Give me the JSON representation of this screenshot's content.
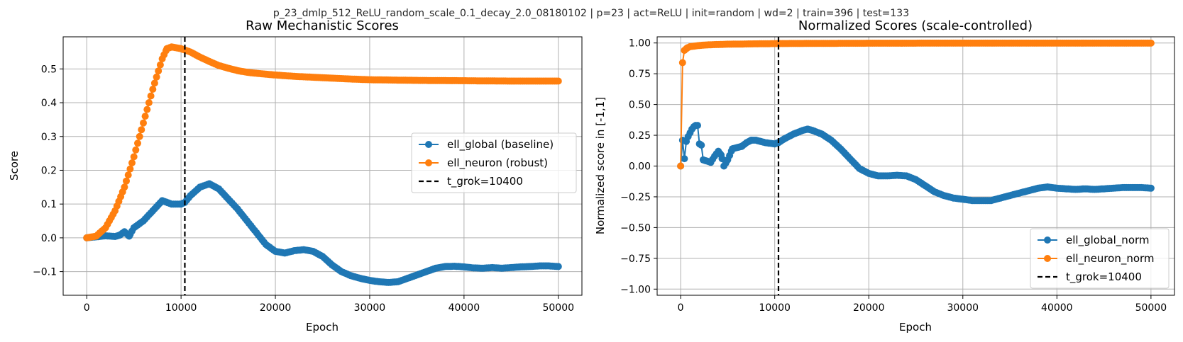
{
  "suptitle": "p_23_dmlp_512_ReLU_random_scale_0.1_decay_2.0_08180102 | p=23 | act=ReLU | init=random | wd=2 | train=396 | test=133",
  "colors": {
    "blue": "#1f77b4",
    "orange": "#ff7f0e",
    "vline": "#000000"
  },
  "chart_data": [
    {
      "type": "line",
      "title": "Raw Mechanistic Scores",
      "xlabel": "Epoch",
      "ylabel": "Score",
      "xlim": [
        -2500,
        52500
      ],
      "ylim": [
        -0.17,
        0.595
      ],
      "xticks": [
        0,
        10000,
        20000,
        30000,
        40000,
        50000
      ],
      "xtick_labels": [
        "0",
        "10000",
        "20000",
        "30000",
        "40000",
        "50000"
      ],
      "yticks": [
        -0.1,
        0.0,
        0.1,
        0.2,
        0.3,
        0.4,
        0.5
      ],
      "ytick_labels": [
        "−0.1",
        "0.0",
        "0.1",
        "0.2",
        "0.3",
        "0.4",
        "0.5"
      ],
      "grid": true,
      "legend_position": "center-right",
      "vline": {
        "x": 10400,
        "label": "t_grok=10400"
      },
      "series": [
        {
          "name": "ell_global (baseline)",
          "color": "#1f77b4",
          "marker": "circle",
          "points": [
            [
              0,
              0.0
            ],
            [
              1000,
              0.003
            ],
            [
              2000,
              0.006
            ],
            [
              3000,
              0.004
            ],
            [
              3500,
              0.008
            ],
            [
              4000,
              0.018
            ],
            [
              4500,
              0.005
            ],
            [
              5000,
              0.03
            ],
            [
              6000,
              0.05
            ],
            [
              7000,
              0.08
            ],
            [
              8000,
              0.11
            ],
            [
              9000,
              0.1
            ],
            [
              10000,
              0.1
            ],
            [
              10400,
              0.105
            ],
            [
              11000,
              0.125
            ],
            [
              12000,
              0.15
            ],
            [
              13000,
              0.16
            ],
            [
              14000,
              0.145
            ],
            [
              15000,
              0.115
            ],
            [
              16000,
              0.085
            ],
            [
              17000,
              0.05
            ],
            [
              18000,
              0.015
            ],
            [
              19000,
              -0.02
            ],
            [
              20000,
              -0.04
            ],
            [
              21000,
              -0.045
            ],
            [
              22000,
              -0.038
            ],
            [
              23000,
              -0.035
            ],
            [
              24000,
              -0.04
            ],
            [
              25000,
              -0.055
            ],
            [
              26000,
              -0.08
            ],
            [
              27000,
              -0.1
            ],
            [
              28000,
              -0.112
            ],
            [
              29000,
              -0.12
            ],
            [
              30000,
              -0.126
            ],
            [
              31000,
              -0.13
            ],
            [
              32000,
              -0.132
            ],
            [
              33000,
              -0.13
            ],
            [
              34000,
              -0.12
            ],
            [
              35000,
              -0.11
            ],
            [
              36000,
              -0.1
            ],
            [
              37000,
              -0.09
            ],
            [
              38000,
              -0.085
            ],
            [
              39000,
              -0.084
            ],
            [
              40000,
              -0.086
            ],
            [
              41000,
              -0.089
            ],
            [
              42000,
              -0.09
            ],
            [
              43000,
              -0.088
            ],
            [
              44000,
              -0.09
            ],
            [
              45000,
              -0.088
            ],
            [
              46000,
              -0.086
            ],
            [
              47000,
              -0.085
            ],
            [
              48000,
              -0.083
            ],
            [
              49000,
              -0.083
            ],
            [
              50000,
              -0.085
            ]
          ]
        },
        {
          "name": "ell_neuron (robust)",
          "color": "#ff7f0e",
          "marker": "circle",
          "points": [
            [
              0,
              0.0
            ],
            [
              1000,
              0.005
            ],
            [
              2000,
              0.03
            ],
            [
              3000,
              0.08
            ],
            [
              4000,
              0.15
            ],
            [
              5000,
              0.24
            ],
            [
              6000,
              0.34
            ],
            [
              7000,
              0.44
            ],
            [
              8000,
              0.53
            ],
            [
              8500,
              0.56
            ],
            [
              9000,
              0.565
            ],
            [
              10000,
              0.56
            ],
            [
              11000,
              0.55
            ],
            [
              12000,
              0.535
            ],
            [
              13000,
              0.522
            ],
            [
              14000,
              0.51
            ],
            [
              15000,
              0.502
            ],
            [
              16000,
              0.495
            ],
            [
              17000,
              0.49
            ],
            [
              18000,
              0.487
            ],
            [
              20000,
              0.482
            ],
            [
              22000,
              0.478
            ],
            [
              25000,
              0.474
            ],
            [
              28000,
              0.47
            ],
            [
              30000,
              0.468
            ],
            [
              35000,
              0.466
            ],
            [
              40000,
              0.465
            ],
            [
              45000,
              0.464
            ],
            [
              50000,
              0.464
            ]
          ]
        }
      ]
    },
    {
      "type": "line",
      "title": "Normalized Scores (scale-controlled)",
      "xlabel": "Epoch",
      "ylabel": "Normalized score in [-1,1]",
      "xlim": [
        -2500,
        52500
      ],
      "ylim": [
        -1.05,
        1.05
      ],
      "xticks": [
        0,
        10000,
        20000,
        30000,
        40000,
        50000
      ],
      "xtick_labels": [
        "0",
        "10000",
        "20000",
        "30000",
        "40000",
        "50000"
      ],
      "yticks": [
        -1.0,
        -0.75,
        -0.5,
        -0.25,
        0.0,
        0.25,
        0.5,
        0.75,
        1.0
      ],
      "ytick_labels": [
        "−1.00",
        "−0.75",
        "−0.50",
        "−0.25",
        "0.00",
        "0.25",
        "0.50",
        "0.75",
        "1.00"
      ],
      "grid": true,
      "legend_position": "lower-right",
      "vline": {
        "x": 10400,
        "label": "t_grok=10400"
      },
      "series": [
        {
          "name": "ell_global_norm",
          "color": "#1f77b4",
          "marker": "circle",
          "points": [
            [
              0,
              0.0
            ],
            [
              200,
              0.21
            ],
            [
              400,
              0.06
            ],
            [
              600,
              0.2
            ],
            [
              800,
              0.24
            ],
            [
              1000,
              0.27
            ],
            [
              1200,
              0.3
            ],
            [
              1400,
              0.32
            ],
            [
              1600,
              0.33
            ],
            [
              1800,
              0.33
            ],
            [
              2000,
              0.18
            ],
            [
              2200,
              0.17
            ],
            [
              2400,
              0.05
            ],
            [
              2800,
              0.04
            ],
            [
              3200,
              0.03
            ],
            [
              3600,
              0.08
            ],
            [
              4000,
              0.12
            ],
            [
              4300,
              0.09
            ],
            [
              4600,
              0.0
            ],
            [
              5000,
              0.05
            ],
            [
              5500,
              0.14
            ],
            [
              6000,
              0.15
            ],
            [
              6500,
              0.16
            ],
            [
              7000,
              0.19
            ],
            [
              7500,
              0.21
            ],
            [
              8000,
              0.21
            ],
            [
              8500,
              0.2
            ],
            [
              9000,
              0.19
            ],
            [
              10000,
              0.18
            ],
            [
              10400,
              0.19
            ],
            [
              11000,
              0.22
            ],
            [
              12000,
              0.26
            ],
            [
              13000,
              0.29
            ],
            [
              13500,
              0.3
            ],
            [
              14000,
              0.29
            ],
            [
              15000,
              0.26
            ],
            [
              16000,
              0.21
            ],
            [
              17000,
              0.14
            ],
            [
              18000,
              0.06
            ],
            [
              19000,
              -0.02
            ],
            [
              20000,
              -0.06
            ],
            [
              21000,
              -0.08
            ],
            [
              22000,
              -0.08
            ],
            [
              23000,
              -0.075
            ],
            [
              24000,
              -0.08
            ],
            [
              25000,
              -0.11
            ],
            [
              26000,
              -0.16
            ],
            [
              27000,
              -0.21
            ],
            [
              28000,
              -0.24
            ],
            [
              29000,
              -0.26
            ],
            [
              30000,
              -0.27
            ],
            [
              31000,
              -0.28
            ],
            [
              32000,
              -0.28
            ],
            [
              33000,
              -0.28
            ],
            [
              34000,
              -0.26
            ],
            [
              35000,
              -0.24
            ],
            [
              36000,
              -0.22
            ],
            [
              37000,
              -0.2
            ],
            [
              38000,
              -0.18
            ],
            [
              39000,
              -0.17
            ],
            [
              40000,
              -0.18
            ],
            [
              41000,
              -0.185
            ],
            [
              42000,
              -0.19
            ],
            [
              43000,
              -0.185
            ],
            [
              44000,
              -0.19
            ],
            [
              45000,
              -0.185
            ],
            [
              46000,
              -0.18
            ],
            [
              47000,
              -0.175
            ],
            [
              48000,
              -0.175
            ],
            [
              49000,
              -0.175
            ],
            [
              50000,
              -0.18
            ]
          ]
        },
        {
          "name": "ell_neuron_norm",
          "color": "#ff7f0e",
          "marker": "circle",
          "points": [
            [
              0,
              0.0
            ],
            [
              200,
              0.84
            ],
            [
              400,
              0.94
            ],
            [
              700,
              0.96
            ],
            [
              1000,
              0.97
            ],
            [
              2000,
              0.98
            ],
            [
              3000,
              0.985
            ],
            [
              5000,
              0.99
            ],
            [
              8000,
              0.993
            ],
            [
              10000,
              0.995
            ],
            [
              15000,
              0.997
            ],
            [
              20000,
              0.998
            ],
            [
              30000,
              0.999
            ],
            [
              40000,
              0.999
            ],
            [
              50000,
              0.999
            ]
          ]
        }
      ]
    }
  ]
}
